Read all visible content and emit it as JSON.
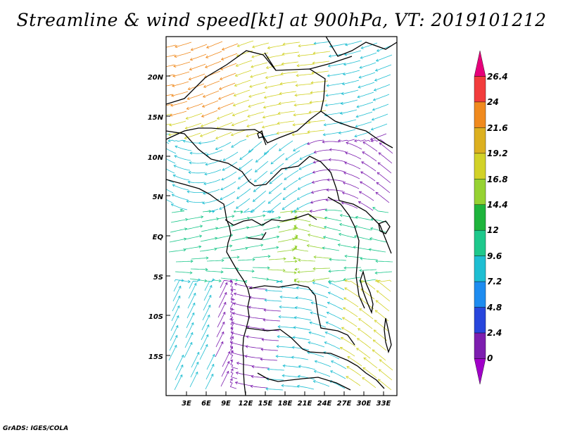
{
  "title": "Streamline & wind speed[kt] at 900hPa, VT: 2019101212",
  "credit": "GrADS: IGES/COLA",
  "axes": {
    "lat_labels": [
      "20N",
      "15N",
      "10N",
      "5N",
      "EQ",
      "5S",
      "10S",
      "15S"
    ],
    "lon_labels": [
      "3E",
      "6E",
      "9E",
      "12E",
      "15E",
      "18E",
      "21E",
      "24E",
      "27E",
      "30E",
      "33E"
    ]
  },
  "colorbar": {
    "labels": [
      "26.4",
      "24",
      "21.6",
      "19.2",
      "16.8",
      "14.4",
      "12",
      "9.6",
      "7.2",
      "4.8",
      "2.4",
      "0"
    ],
    "colors": [
      "#e6007a",
      "#f23c3c",
      "#f08a1e",
      "#dcb020",
      "#d2d228",
      "#96d232",
      "#1eb43c",
      "#1ec88c",
      "#1ebed2",
      "#1e8cf0",
      "#2846dc",
      "#7d1eaf",
      "#a000c8"
    ]
  },
  "map_colors": {
    "coast": "#000000",
    "strong": "#f08a1e",
    "yellow": "#d2d228",
    "green": "#96d232",
    "cyan": "#1ebed2",
    "teal": "#1ec88c",
    "blue": "#2846dc",
    "purple": "#7d1eaf"
  }
}
